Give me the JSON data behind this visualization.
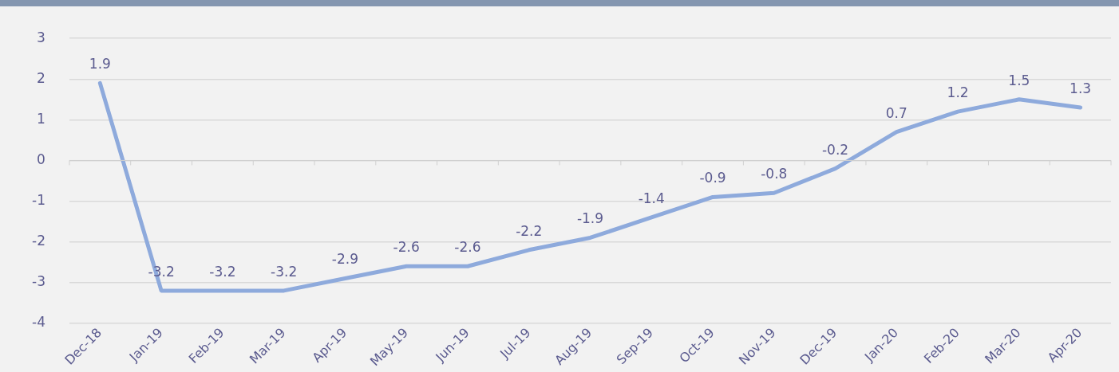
{
  "chart_data": {
    "type": "line",
    "categories": [
      "Dec-18",
      "Jan-19",
      "Feb-19",
      "Mar-19",
      "Apr-19",
      "May-19",
      "Jun-19",
      "Jul-19",
      "Aug-19",
      "Sep-19",
      "Oct-19",
      "Nov-19",
      "Dec-19",
      "Jan-20",
      "Feb-20",
      "Mar-20",
      "Apr-20"
    ],
    "series": [
      {
        "color": "#8eaadc",
        "values": [
          1.9,
          -3.2,
          -3.2,
          -3.2,
          -2.9,
          -2.6,
          -2.6,
          -2.2,
          -1.9,
          -1.4,
          -0.9,
          -0.8,
          -0.2,
          0.7,
          1.2,
          1.5,
          1.3
        ]
      }
    ],
    "ylim": [
      -4,
      3
    ],
    "yticks": [
      -4,
      -3,
      -2,
      -1,
      0,
      1,
      2,
      3
    ],
    "grid": "y",
    "legend": false,
    "marker": "none",
    "line_style": "solid",
    "data_labels": true
  }
}
